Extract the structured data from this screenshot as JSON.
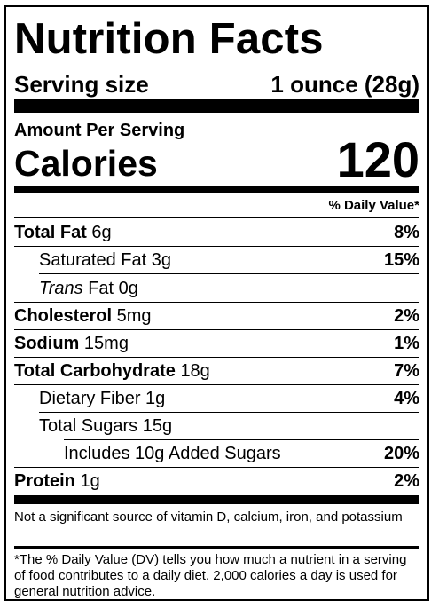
{
  "title": "Nutrition Facts",
  "serving": {
    "label": "Serving size",
    "value": "1 ounce (28g)"
  },
  "amount_per_serving": "Amount Per Serving",
  "calories": {
    "label": "Calories",
    "value": "120"
  },
  "daily_value_header": "% Daily Value*",
  "nutrients": [
    {
      "name": "Total Fat",
      "amount": "6g",
      "dv": "8%"
    },
    {
      "name": "Saturated Fat",
      "amount": "3g",
      "dv": "15%"
    },
    {
      "name_italic": "Trans",
      "name": "Fat",
      "amount": "0g",
      "dv": ""
    },
    {
      "name": "Cholesterol",
      "amount": "5mg",
      "dv": "2%"
    },
    {
      "name": "Sodium",
      "amount": "15mg",
      "dv": "1%"
    },
    {
      "name": "Total Carbohydrate",
      "amount": "18g",
      "dv": "7%"
    },
    {
      "name": "Dietary Fiber",
      "amount": "1g",
      "dv": "4%"
    },
    {
      "name": "Total Sugars",
      "amount": "15g",
      "dv": ""
    },
    {
      "name": "Includes 10g Added Sugars",
      "amount": "",
      "dv": "20%"
    },
    {
      "name": "Protein",
      "amount": "1g",
      "dv": "2%"
    }
  ],
  "footnote_vitamins": "Not a significant source of vitamin D, calcium, iron, and potassium",
  "footnote_dv": "The % Daily Value (DV) tells you how much a nutrient in a serving of food contributes to a daily diet. 2,000 calories a day is used for general nutrition advice.",
  "footnote_mark": "*"
}
